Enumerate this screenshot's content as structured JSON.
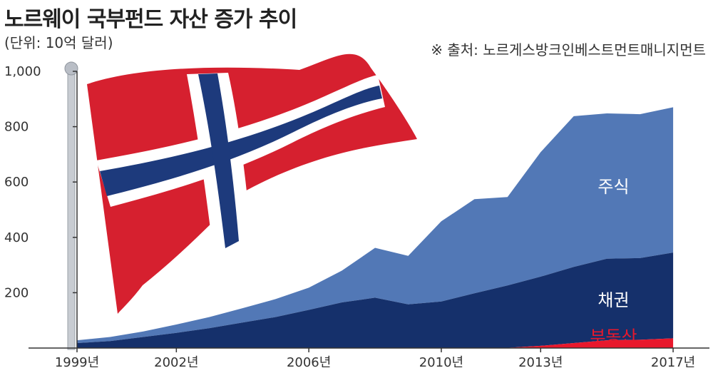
{
  "header": {
    "title": "노르웨이 국부펀드 자산 증가 추이",
    "unit": "(단위: 10억 달러)",
    "source": "※ 출처: 노르게스방크인베스트먼트매니지먼트"
  },
  "chart_data": {
    "type": "area",
    "stacked": true,
    "x": [
      1999,
      2000,
      2001,
      2002,
      2003,
      2004,
      2005,
      2006,
      2007,
      2008,
      2009,
      2010,
      2011,
      2012,
      2013,
      2014,
      2015,
      2016,
      2017
    ],
    "x_tick_labels": [
      {
        "x": 1999,
        "label": "1999년"
      },
      {
        "x": 2002,
        "label": "2002년"
      },
      {
        "x": 2006,
        "label": "2006년"
      },
      {
        "x": 2010,
        "label": "2010년"
      },
      {
        "x": 2013,
        "label": "2013년"
      },
      {
        "x": 2017,
        "label": "2017년"
      }
    ],
    "y_ticks": [
      200,
      400,
      600,
      800,
      1000
    ],
    "y_tick_labels": [
      "200",
      "400",
      "600",
      "800",
      "1,000"
    ],
    "ylim": [
      0,
      1000
    ],
    "xlim": [
      1999,
      2017.3
    ],
    "series": [
      {
        "name": "부동산",
        "color": "#e8182c",
        "label_color": "#e8182c",
        "values": [
          0,
          0,
          0,
          0,
          0,
          0,
          0,
          0,
          0,
          0,
          0,
          0,
          0,
          1,
          8,
          18,
          28,
          30,
          35
        ]
      },
      {
        "name": "채권",
        "color": "#15306b",
        "label_color": "#ffffff",
        "values": [
          18,
          25,
          40,
          55,
          72,
          92,
          112,
          138,
          165,
          182,
          158,
          168,
          198,
          225,
          250,
          275,
          295,
          295,
          310
        ]
      },
      {
        "name": "주식",
        "color": "#5278b6",
        "label_color": "#ffffff",
        "values": [
          10,
          15,
          20,
          30,
          40,
          52,
          65,
          80,
          115,
          180,
          175,
          290,
          340,
          320,
          450,
          545,
          525,
          520,
          525
        ]
      }
    ]
  }
}
